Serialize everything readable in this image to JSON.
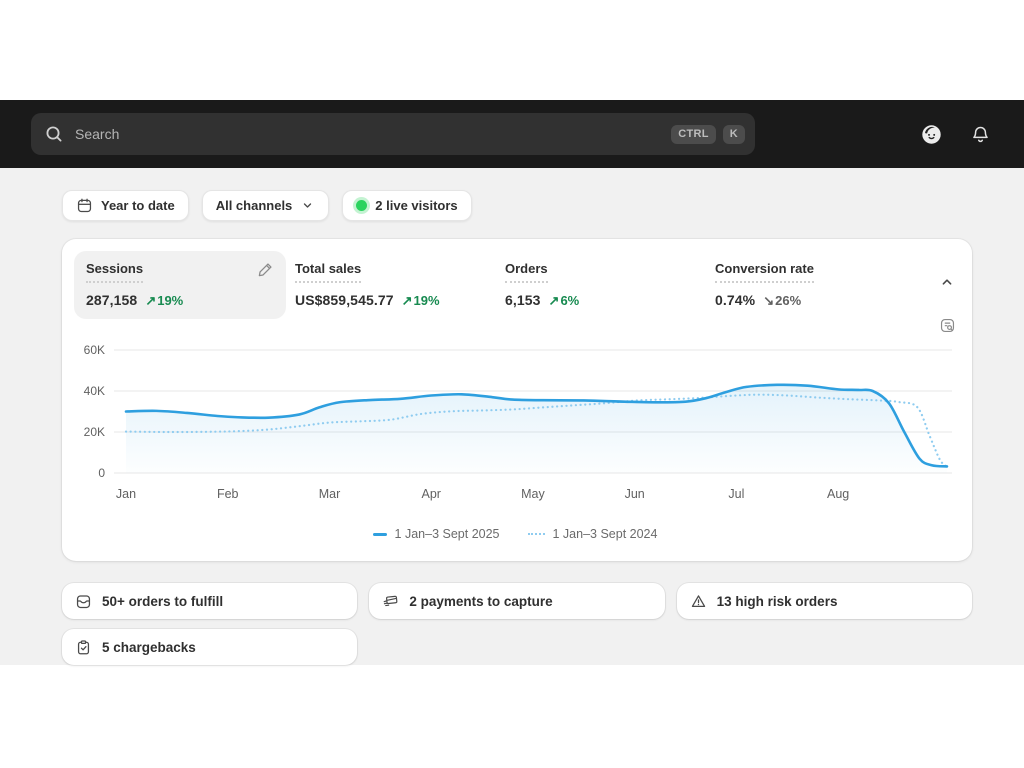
{
  "topbar": {
    "search": {
      "placeholder": "Search",
      "shortcut": [
        "CTRL",
        "K"
      ]
    }
  },
  "filters": {
    "date_range": {
      "label": "Year to date"
    },
    "channel": {
      "label": "All channels"
    },
    "live_visitors": {
      "label": "2 live visitors"
    }
  },
  "overview": {
    "metrics": [
      {
        "label": "Sessions",
        "value": "287,158",
        "arrow": "↗",
        "delta": "19%",
        "direction": "up",
        "selected": true
      },
      {
        "label": "Total sales",
        "value": "US$859,545.77",
        "arrow": "↗",
        "delta": "19%",
        "direction": "up",
        "selected": false
      },
      {
        "label": "Orders",
        "value": "6,153",
        "arrow": "↗",
        "delta": "6%",
        "direction": "up",
        "selected": false
      },
      {
        "label": "Conversion rate",
        "value": "0.74%",
        "arrow": "↘",
        "delta": "26%",
        "direction": "down",
        "selected": false
      }
    ]
  },
  "chart_data": {
    "type": "line",
    "title": "Sessions",
    "x_unit": "months since 1 Jan",
    "x_max": 8.07,
    "ylim": [
      0,
      60000
    ],
    "grid": true,
    "legend_position": "bottom",
    "yticks": [
      {
        "value": 0,
        "label": "0"
      },
      {
        "value": 20000,
        "label": "20K"
      },
      {
        "value": 40000,
        "label": "40K"
      },
      {
        "value": 60000,
        "label": "60K"
      }
    ],
    "xticks": [
      {
        "value": 0,
        "label": "Jan"
      },
      {
        "value": 1,
        "label": "Feb"
      },
      {
        "value": 2,
        "label": "Mar"
      },
      {
        "value": 3,
        "label": "Apr"
      },
      {
        "value": 4,
        "label": "May"
      },
      {
        "value": 5,
        "label": "Jun"
      },
      {
        "value": 6,
        "label": "Jul"
      },
      {
        "value": 7,
        "label": "Aug"
      }
    ],
    "series": [
      {
        "name": "1 Jan–3 Sept 2025",
        "style": "solid",
        "color": "#2e9fdf",
        "fill": true,
        "x": [
          0,
          0.3,
          0.6,
          0.9,
          1.1,
          1.4,
          1.7,
          1.9,
          2.1,
          2.4,
          2.7,
          3.0,
          3.3,
          3.6,
          3.8,
          4.1,
          4.5,
          4.9,
          5.2,
          5.5,
          5.7,
          5.9,
          6.1,
          6.4,
          6.7,
          7.0,
          7.2,
          7.34,
          7.5,
          7.65,
          7.8,
          7.92,
          8.07
        ],
        "values": [
          30000,
          30300,
          29300,
          27800,
          27200,
          27000,
          28500,
          32000,
          34500,
          35600,
          36200,
          37800,
          38400,
          37000,
          35800,
          35500,
          35400,
          34800,
          34500,
          34800,
          36500,
          39500,
          42000,
          43000,
          42600,
          40800,
          40500,
          40000,
          34000,
          20000,
          7000,
          3800,
          3200
        ]
      },
      {
        "name": "1 Jan–3 Sept 2024",
        "style": "dotted",
        "color": "#8fccf0",
        "fill": false,
        "x": [
          0,
          0.4,
          0.8,
          1.1,
          1.4,
          1.7,
          2.0,
          2.3,
          2.6,
          2.9,
          3.2,
          3.5,
          3.8,
          4.1,
          4.4,
          4.7,
          5.0,
          5.3,
          5.6,
          5.9,
          6.2,
          6.5,
          6.8,
          7.1,
          7.4,
          7.6,
          7.78,
          7.9,
          8.0,
          8.07
        ],
        "values": [
          20200,
          20000,
          20100,
          20400,
          21200,
          22800,
          24600,
          25200,
          26000,
          28800,
          30100,
          30500,
          31000,
          32000,
          33000,
          34000,
          35300,
          35900,
          36500,
          37500,
          38200,
          37800,
          36800,
          36000,
          35400,
          34600,
          32000,
          18000,
          6500,
          3000
        ]
      }
    ]
  },
  "action_cards": [
    {
      "label": "50+ orders to fulfill",
      "icon": "orders-inbox-icon"
    },
    {
      "label": "2 payments to capture",
      "icon": "payment-capture-icon"
    },
    {
      "label": "13 high risk orders",
      "icon": "high-risk-warning-icon"
    },
    {
      "label": "5 chargebacks",
      "icon": "chargeback-clipboard-icon"
    }
  ],
  "colors": {
    "topbar_bg": "#1a1a1a",
    "page_bg": "#f1f1f1",
    "accent_blue_2025": "#2e9fdf",
    "comparison_blue_2024": "#8fccf0",
    "positive_green": "#178a50",
    "neutral_gray": "#616161",
    "live_dot_green": "#2bd35f"
  }
}
